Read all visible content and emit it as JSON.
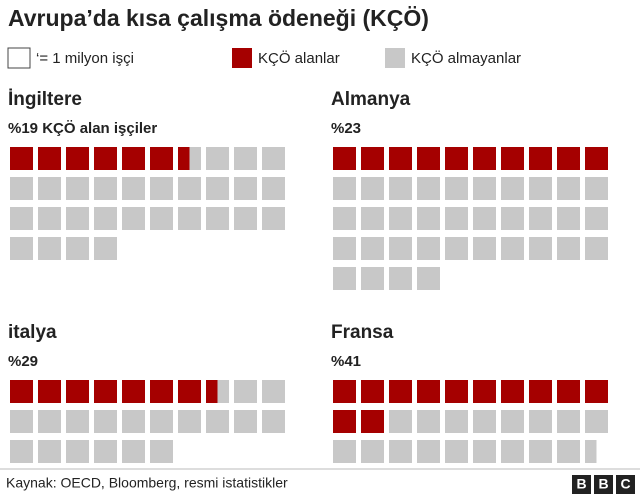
{
  "title": "Avrupa’da kısa çalışma ödeneği (KÇÖ)",
  "legend": {
    "unit": "‘= 1 milyon işçi",
    "series": [
      {
        "name": "KÇÖ alanlar",
        "color": "#a50000"
      },
      {
        "name": "KÇÖ almayanlar",
        "color": "#c8c8c8"
      }
    ]
  },
  "chart_data": [
    {
      "type": "waffle",
      "title": "İngiltere",
      "subtitle": "%19 KÇÖ alan işçiler",
      "values": [
        6.5,
        27.5
      ]
    },
    {
      "type": "waffle",
      "title": "Almanya",
      "subtitle": "%23",
      "values": [
        10,
        34
      ]
    },
    {
      "type": "waffle",
      "title": "italya",
      "subtitle": "%29",
      "values": [
        7.5,
        18.5
      ]
    },
    {
      "type": "waffle",
      "title": "Fransa",
      "subtitle": "%41",
      "values": [
        12,
        17.5
      ]
    }
  ],
  "source": "Kaynak: OECD, Bloomberg, resmi istatistikler",
  "logo": [
    "B",
    "B",
    "C"
  ]
}
